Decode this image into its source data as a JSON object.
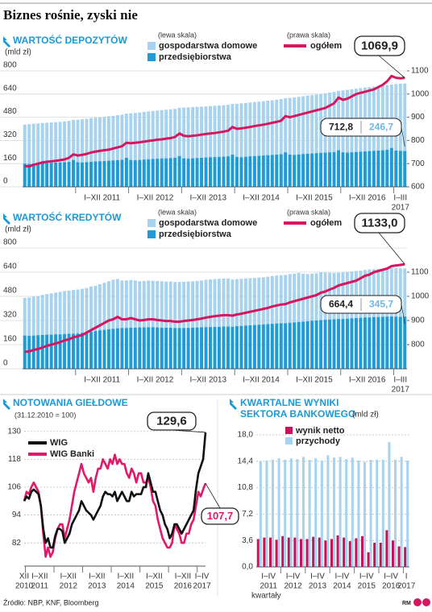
{
  "title": "Biznes rośnie, zyski nie",
  "source": "Źródło: NBP, KNF, Bloomberg",
  "author": "RM",
  "chart_data": [
    {
      "type": "bar_line",
      "title": "WARTOŚĆ DEPOZYTÓW",
      "unit": "(mld zł)",
      "left_axis_note": "(lewa skala)",
      "right_axis_note": "(prawa skala)",
      "period_labels": [
        "I–XII 2011",
        "I–XII 2012",
        "I–XII 2013",
        "I–XII 2014",
        "I–XII 2015",
        "I–XII 2016",
        [
          "I–III",
          "2017"
        ]
      ],
      "series": [
        {
          "name": "gospodarstwa domowe",
          "color": "#a8d3ee",
          "end_label": "712,8",
          "values": [
            430,
            432,
            435,
            437,
            440,
            442,
            444,
            446,
            448,
            452,
            455,
            462,
            463,
            466,
            470,
            474,
            477,
            480,
            483,
            487,
            490,
            494,
            498,
            505,
            507,
            510,
            513,
            517,
            520,
            523,
            526,
            529,
            532,
            535,
            538,
            545,
            546,
            548,
            550,
            552,
            553,
            555,
            557,
            559,
            561,
            563,
            566,
            572,
            573,
            576,
            579,
            582,
            585,
            588,
            591,
            594,
            597,
            601,
            605,
            611,
            613,
            617,
            621,
            625,
            629,
            633,
            637,
            641,
            645,
            650,
            655,
            662,
            665,
            669,
            673,
            677,
            681,
            685,
            688,
            691,
            694,
            698,
            702,
            706,
            709,
            711,
            712.8
          ]
        },
        {
          "name": "przedsiębiorstwa",
          "color": "#1f9bd7",
          "end_label": "246,7",
          "values": [
            160,
            158,
            160,
            162,
            163,
            165,
            166,
            167,
            168,
            170,
            172,
            185,
            170,
            168,
            170,
            172,
            175,
            176,
            178,
            180,
            182,
            184,
            186,
            200,
            185,
            183,
            185,
            188,
            190,
            192,
            194,
            195,
            196,
            198,
            200,
            212,
            196,
            194,
            196,
            198,
            200,
            202,
            204,
            205,
            206,
            208,
            210,
            222,
            206,
            204,
            207,
            210,
            212,
            214,
            216,
            218,
            220,
            222,
            225,
            238,
            222,
            220,
            223,
            226,
            228,
            230,
            232,
            234,
            236,
            238,
            240,
            252,
            238,
            236,
            238,
            240,
            242,
            244,
            246,
            248,
            250,
            252,
            255,
            268,
            250,
            248,
            246.7
          ]
        },
        {
          "name": "ogółem",
          "color": "#d6175f",
          "axis": "y2",
          "end_label": "1069,9",
          "values": [
            690,
            688,
            695,
            700,
            705,
            708,
            710,
            712,
            715,
            718,
            725,
            740,
            735,
            738,
            742,
            748,
            752,
            755,
            758,
            760,
            765,
            770,
            775,
            790,
            788,
            790,
            792,
            795,
            798,
            800,
            803,
            805,
            808,
            810,
            815,
            830,
            820,
            818,
            820,
            822,
            825,
            828,
            830,
            832,
            835,
            838,
            842,
            858,
            850,
            852,
            855,
            858,
            862,
            865,
            868,
            872,
            876,
            880,
            885,
            905,
            900,
            905,
            910,
            915,
            920,
            925,
            930,
            935,
            940,
            950,
            960,
            985,
            975,
            980,
            990,
            1000,
            1005,
            1010,
            1015,
            1020,
            1030,
            1040,
            1055,
            1078,
            1070,
            1068,
            1069.9
          ]
        }
      ],
      "ylim": [
        0,
        800
      ],
      "yticks": [
        0,
        160,
        320,
        480,
        640,
        800
      ],
      "y2lim": [
        600,
        1100
      ],
      "y2ticks": [
        600,
        700,
        800,
        900,
        1000,
        1100
      ],
      "grid": true
    },
    {
      "type": "bar_line",
      "title": "WARTOŚĆ KREDYTÓW",
      "unit": "(mld zł)",
      "left_axis_note": "(lewa skala)",
      "right_axis_note": "(prawa skala)",
      "period_labels": [
        "I–XII 2011",
        "I–XII 2012",
        "I–XII 2013",
        "I–XII 2014",
        "I–XII 2015",
        "I–XII 2016",
        [
          "I–III",
          "2017"
        ]
      ],
      "series": [
        {
          "name": "gospodarstwa domowe",
          "color": "#a8d3ee",
          "end_label": "664,4",
          "values": [
            470,
            472,
            478,
            482,
            490,
            495,
            500,
            505,
            510,
            515,
            518,
            522,
            525,
            530,
            535,
            545,
            550,
            560,
            570,
            580,
            590,
            595,
            585,
            585,
            588,
            585,
            580,
            582,
            585,
            583,
            582,
            580,
            578,
            578,
            575,
            575,
            576,
            578,
            580,
            582,
            585,
            590,
            592,
            594,
            596,
            598,
            598,
            592,
            594,
            596,
            598,
            600,
            602,
            604,
            606,
            610,
            614,
            618,
            620,
            622,
            628,
            630,
            635,
            630,
            628,
            630,
            632,
            640,
            638,
            636,
            634,
            636,
            640,
            642,
            645,
            648,
            650,
            655,
            658,
            660,
            662,
            664,
            664,
            668,
            666,
            665,
            664.4
          ]
        },
        {
          "name": "przedsiębiorstwa",
          "color": "#1f9bd7",
          "end_label": "345,7",
          "values": [
            220,
            218,
            220,
            222,
            224,
            226,
            226,
            228,
            228,
            230,
            232,
            232,
            234,
            238,
            242,
            246,
            250,
            255,
            258,
            262,
            265,
            268,
            270,
            270,
            272,
            272,
            274,
            274,
            275,
            275,
            274,
            272,
            272,
            272,
            270,
            270,
            270,
            271,
            272,
            273,
            275,
            276,
            276,
            277,
            278,
            280,
            280,
            278,
            282,
            284,
            286,
            288,
            290,
            292,
            294,
            296,
            298,
            300,
            302,
            302,
            305,
            307,
            310,
            312,
            315,
            318,
            320,
            322,
            324,
            326,
            328,
            330,
            330,
            332,
            334,
            336,
            338,
            340,
            340,
            342,
            343,
            344,
            345,
            346,
            345,
            344,
            345.7
          ]
        },
        {
          "name": "ogółem",
          "color": "#d6175f",
          "axis": "y2",
          "end_label": "1133,0",
          "values": [
            770,
            772,
            778,
            782,
            788,
            795,
            800,
            805,
            810,
            818,
            822,
            830,
            835,
            840,
            850,
            860,
            870,
            880,
            890,
            900,
            905,
            915,
            905,
            905,
            910,
            905,
            900,
            902,
            905,
            905,
            902,
            900,
            898,
            898,
            895,
            895,
            898,
            900,
            902,
            905,
            908,
            912,
            915,
            918,
            920,
            922,
            922,
            920,
            925,
            928,
            932,
            936,
            940,
            944,
            948,
            952,
            958,
            962,
            966,
            968,
            975,
            980,
            985,
            990,
            995,
            1000,
            1005,
            1015,
            1020,
            1028,
            1035,
            1045,
            1050,
            1055,
            1060,
            1065,
            1075,
            1085,
            1090,
            1100,
            1105,
            1110,
            1115,
            1125,
            1128,
            1130,
            1133.0
          ]
        }
      ],
      "ylim": [
        0,
        800
      ],
      "yticks": [
        0,
        160,
        320,
        480,
        640,
        800
      ],
      "y2lim": [
        700,
        1200
      ],
      "y2ticks": [
        800,
        900,
        1000,
        1100
      ],
      "grid": true
    },
    {
      "type": "line",
      "title": "NOTOWANIA GIEŁDOWE",
      "subtitle": "(31.12.2010 = 100)",
      "period_labels": [
        [
          "XII",
          "2010"
        ],
        [
          "I–XII",
          "2011"
        ],
        [
          "I–XII",
          "2012"
        ],
        [
          "I–XII",
          "2013"
        ],
        [
          "I–XII",
          "2014"
        ],
        [
          "I–XII",
          "2015"
        ],
        [
          "I–XII",
          "2016"
        ],
        [
          "I–IV",
          "2017"
        ]
      ],
      "series": [
        {
          "name": "WIG",
          "color": "#111111",
          "end_label": "129,6",
          "values": [
            100,
            102,
            101,
            104,
            105,
            104,
            103,
            98,
            88,
            82,
            84,
            80,
            80,
            85,
            88,
            88,
            87,
            82,
            84,
            86,
            90,
            92,
            94,
            96,
            100,
            98,
            96,
            95,
            94,
            92,
            94,
            96,
            98,
            102,
            104,
            103,
            103,
            102,
            104,
            100,
            102,
            104,
            102,
            100,
            100,
            104,
            102,
            103,
            103,
            103,
            106,
            106,
            112,
            108,
            104,
            104,
            100,
            96,
            94,
            90,
            88,
            84,
            86,
            90,
            90,
            88,
            86,
            88,
            90,
            92,
            94,
            96,
            105,
            112,
            115,
            118,
            129.6
          ]
        },
        {
          "name": "WIG Banki",
          "color": "#e0196a",
          "end_label": "107,7",
          "values": [
            100,
            104,
            103,
            106,
            108,
            106,
            104,
            98,
            86,
            76,
            80,
            76,
            78,
            84,
            88,
            90,
            90,
            84,
            88,
            92,
            98,
            104,
            108,
            112,
            116,
            112,
            110,
            108,
            110,
            104,
            110,
            114,
            114,
            118,
            116,
            114,
            118,
            116,
            120,
            116,
            118,
            116,
            116,
            112,
            110,
            114,
            112,
            108,
            112,
            112,
            108,
            108,
            110,
            106,
            100,
            98,
            92,
            88,
            84,
            82,
            80,
            80,
            82,
            90,
            88,
            86,
            82,
            82,
            86,
            86,
            90,
            92,
            98,
            104,
            102,
            105,
            107.7
          ]
        }
      ],
      "ylim": [
        72,
        132
      ],
      "yticks": [
        82,
        94,
        106,
        118,
        130
      ],
      "grid": true
    },
    {
      "type": "bar",
      "title": [
        "KWARTALNE WYNIKI",
        "SEKTORA BANKOWEGO"
      ],
      "unit": "(mld zł)",
      "x_label": "kwartały",
      "period_labels": [
        [
          "I–IV",
          "2011"
        ],
        [
          "I–IV",
          "2012"
        ],
        [
          "I–IV",
          "2013"
        ],
        [
          "I–IV",
          "2014"
        ],
        [
          "I–IV",
          "2015"
        ],
        [
          "I–IV",
          "2016"
        ],
        [
          "I",
          "2017"
        ]
      ],
      "series": [
        {
          "name": "wynik netto",
          "color": "#c4145a",
          "values": [
            3.8,
            4.0,
            4.0,
            3.7,
            4.2,
            4.0,
            4.0,
            3.8,
            3.8,
            4.1,
            4.0,
            3.6,
            3.8,
            4.3,
            4.0,
            3.5,
            3.9,
            4.2,
            2.0,
            3.3,
            3.3,
            5.0,
            3.6,
            2.8,
            2.7
          ]
        },
        {
          "name": "przychody",
          "color": "#a8d3ee",
          "values": [
            14.4,
            14.5,
            14.6,
            14.8,
            14.6,
            14.8,
            14.7,
            15.0,
            14.6,
            14.8,
            14.5,
            15.2,
            14.9,
            15.0,
            14.7,
            14.9,
            14.5,
            14.3,
            14.6,
            14.6,
            14.6,
            17.0,
            14.6,
            15.0,
            14.5
          ]
        }
      ],
      "ylim": [
        0,
        18
      ],
      "yticks": [
        {
          "value": 0,
          "label": "0,0"
        },
        {
          "value": 3.6,
          "label": "3,6"
        },
        {
          "value": 7.2,
          "label": "7,2"
        },
        {
          "value": 10.8,
          "label": "10,8"
        },
        {
          "value": 14.4,
          "label": "14,4"
        },
        {
          "value": 18,
          "label": "18,0"
        }
      ],
      "grid": true
    }
  ]
}
